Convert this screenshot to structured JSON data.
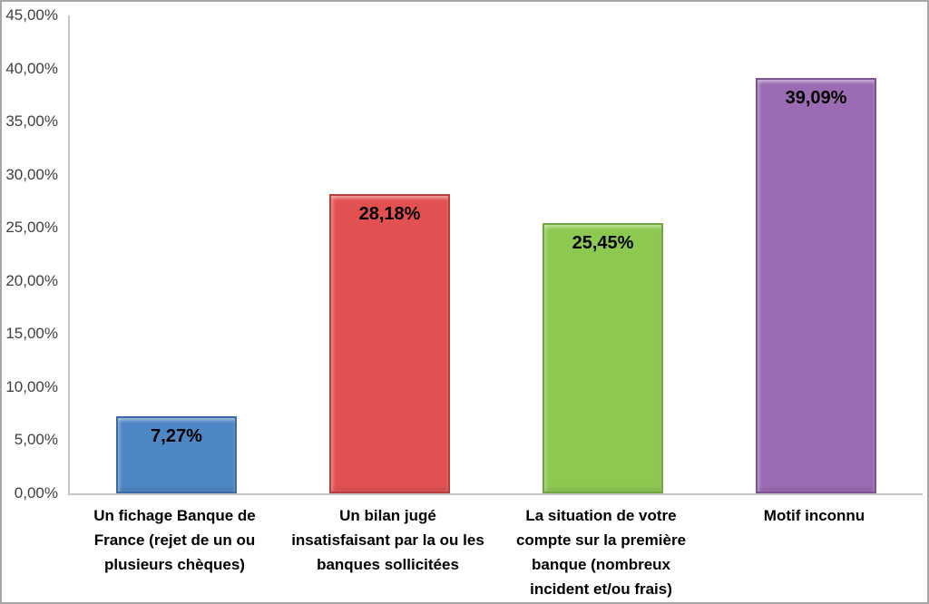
{
  "window": {
    "background": "#ffffff",
    "frame_border_color": "#a6a6a6"
  },
  "chart_data": {
    "type": "bar",
    "title": "",
    "xlabel": "",
    "ylabel": "",
    "categories": [
      "Un fichage Banque de\nFrance (rejet de un ou\nplusieurs chèques)",
      "Un bilan jugé\ninsatisfaisant par la ou les\nbanques sollicitées",
      "La situation de votre\ncompte sur la première\nbanque (nombreux\nincident et/ou frais)",
      "Motif inconnu"
    ],
    "values": [
      7.27,
      28.18,
      25.45,
      39.09
    ],
    "value_labels": [
      "7,27%",
      "28,18%",
      "25,45%",
      "39,09%"
    ],
    "bar_styles": [
      {
        "fill": "#4e87c5",
        "border": "#3a6ba8"
      },
      {
        "fill": "#e25151",
        "border": "#ba3b3b"
      },
      {
        "fill": "#8dc951",
        "border": "#71a63c"
      },
      {
        "fill": "#9b6bb3",
        "border": "#7e5295"
      }
    ],
    "ylim": [
      0,
      45
    ],
    "ytick_step": 5,
    "ytick_labels_top_to_bottom": [
      "45,00%",
      "40,00%",
      "35,00%",
      "30,00%",
      "25,00%",
      "20,00%",
      "15,00%",
      "10,00%",
      "5,00%",
      "0,00%"
    ],
    "decimal_separator": ",",
    "grid": false,
    "legend": false,
    "axis_color": "#c6c6c6",
    "tick_label_color": "#3f3f3f",
    "data_label_color": "#000000"
  }
}
